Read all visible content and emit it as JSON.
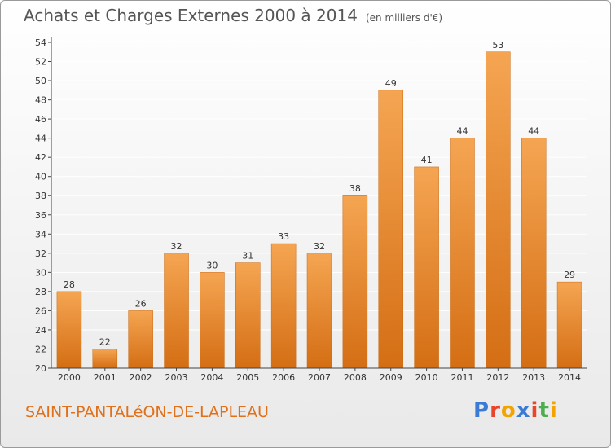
{
  "header": {
    "title": "Achats et Charges Externes 2000 à 2014",
    "unit": "(en milliers d'€)"
  },
  "footer": {
    "commune": "SAINT-PANTALéON-DE-LAPLEAU",
    "logo": {
      "letters": [
        "P",
        "r",
        "o",
        "x",
        "i",
        "t",
        "i"
      ],
      "colors": [
        "#3a7bd5",
        "#e8452c",
        "#f4a300",
        "#3a7bd5",
        "#e8452c",
        "#4cae4c",
        "#f4a300"
      ]
    }
  },
  "colors": {
    "bar": "#f0902e",
    "bar_light": "#f5a552",
    "bar_dark": "#d46e14",
    "axis": "#444444",
    "grid": "#ffffff"
  },
  "chart_data": {
    "type": "bar",
    "categories": [
      "2000",
      "2001",
      "2002",
      "2003",
      "2004",
      "2005",
      "2006",
      "2007",
      "2008",
      "2009",
      "2010",
      "2011",
      "2012",
      "2013",
      "2014"
    ],
    "values": [
      28,
      22,
      26,
      32,
      30,
      31,
      33,
      32,
      38,
      49,
      41,
      44,
      53,
      44,
      29
    ],
    "title": "Achats et Charges Externes 2000 à 2014",
    "ylim": [
      20,
      54
    ],
    "yticks": [
      20,
      22,
      24,
      26,
      28,
      30,
      32,
      34,
      36,
      38,
      40,
      42,
      44,
      46,
      48,
      50,
      52,
      54
    ],
    "grid": true,
    "data_labels": true
  }
}
